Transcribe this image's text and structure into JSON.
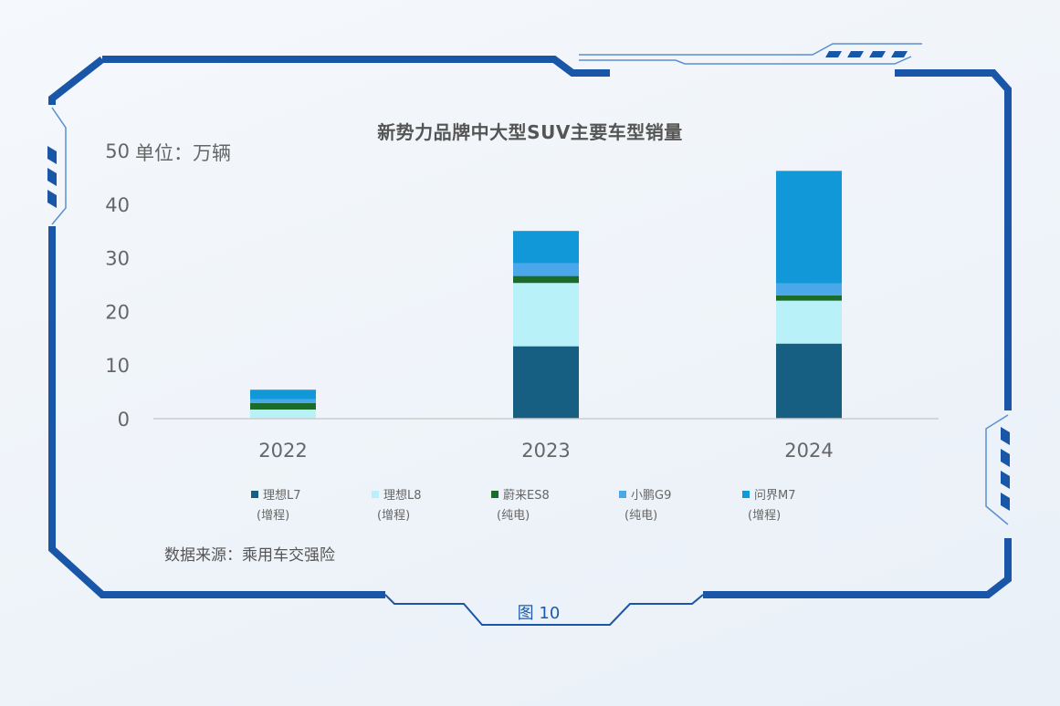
{
  "chart_data": {
    "type": "bar",
    "stacked": true,
    "title": "新势力品牌中大型SUV主要车型销量",
    "unit_label": "单位：万辆",
    "categories": [
      "2022",
      "2023",
      "2024"
    ],
    "ylim": [
      0,
      50
    ],
    "yticks": [
      0,
      10,
      20,
      30,
      40,
      50
    ],
    "grid": false,
    "legend_position": "bottom",
    "series": [
      {
        "name": "理想L7",
        "note": "(增程)",
        "color": "#175f82",
        "values": [
          0,
          13.5,
          14.0
        ]
      },
      {
        "name": "理想L8",
        "note": "(增程)",
        "color": "#b8f1f8",
        "values": [
          1.7,
          11.8,
          8.0
        ]
      },
      {
        "name": "蔚来ES8",
        "note": "(纯电)",
        "color": "#1b6b2a",
        "values": [
          1.2,
          1.3,
          1.0
        ]
      },
      {
        "name": "小鹏G9",
        "note": "(纯电)",
        "color": "#4aa8ea",
        "values": [
          0.7,
          2.4,
          2.2
        ]
      },
      {
        "name": "问界M7",
        "note": "(增程)",
        "color": "#1098d8",
        "values": [
          1.8,
          6.0,
          21.0
        ]
      }
    ]
  },
  "source_note": "数据来源：乘用车交强险",
  "figure_label": "图 10",
  "colors": {
    "frame": "#1a56a8",
    "frame_light": "#5a8fd0"
  }
}
